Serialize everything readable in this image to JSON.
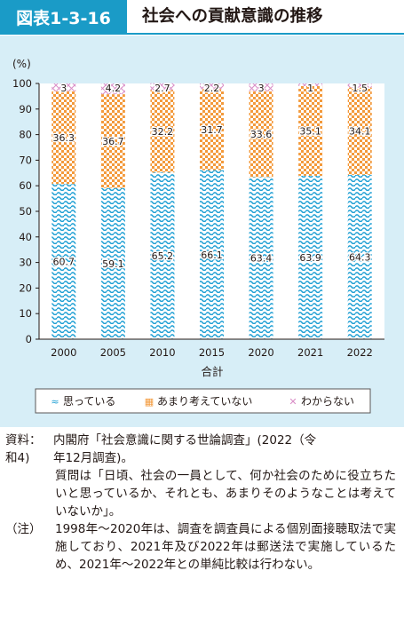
{
  "header": {
    "figure_number": "図表1-3-16",
    "title": "社会への貢献意識の推移"
  },
  "chart_data": {
    "type": "bar",
    "stacked": true,
    "percent_stacked": true,
    "unit_label": "(%)",
    "xlabel": "合計",
    "categories": [
      "2000",
      "2005",
      "2010",
      "2015",
      "2020",
      "2021",
      "2022"
    ],
    "ylim": [
      0,
      100
    ],
    "yticks": [
      0,
      10,
      20,
      30,
      40,
      50,
      60,
      70,
      80,
      90,
      100
    ],
    "series": [
      {
        "name": "思っている",
        "values": [
          60.7,
          59.1,
          65.2,
          66.1,
          63.4,
          63.9,
          64.3
        ],
        "labels": [
          "60.7",
          "59.1",
          "65.2",
          "66.1",
          "63.4",
          "63.9",
          "64.3"
        ],
        "color": "#1e9fd4",
        "pattern": "wave"
      },
      {
        "name": "あまり考えていない",
        "values": [
          36.3,
          36.7,
          32.2,
          31.7,
          33.6,
          35.1,
          34.1
        ],
        "labels": [
          "36.3",
          "36.7",
          "32.2",
          "31.7",
          "33.6",
          "35.1",
          "34.1"
        ],
        "color": "#f39a3c",
        "pattern": "checker"
      },
      {
        "name": "わからない",
        "values": [
          3,
          4.2,
          2.7,
          2.2,
          3,
          1,
          1.5
        ],
        "labels": [
          "3",
          "4.2",
          "2.7",
          "2.2",
          "3",
          "1",
          "1.5"
        ],
        "color": "#d98cc6",
        "pattern": "cross"
      }
    ],
    "legend_position": "bottom",
    "grid": false
  },
  "notes": [
    {
      "label": "資料：",
      "text": "内閣府「社会意識に関する世論調査」(2022（令"
    },
    {
      "label": "和4)",
      "text": "年12月調査)。"
    },
    {
      "label": "",
      "text": "質問は「日頃、社会の一員として、何か社会のために役立ちたいと思っているか、それとも、あまりそのようなことは考えていないか」。"
    },
    {
      "label": "（注）",
      "text": "1998年～2020年は、調査を調査員による個別面接聴取法で実施しており、2021年及び2022年は郵送法で実施しているため、2021年～2022年との単純比較は行わない。"
    }
  ]
}
